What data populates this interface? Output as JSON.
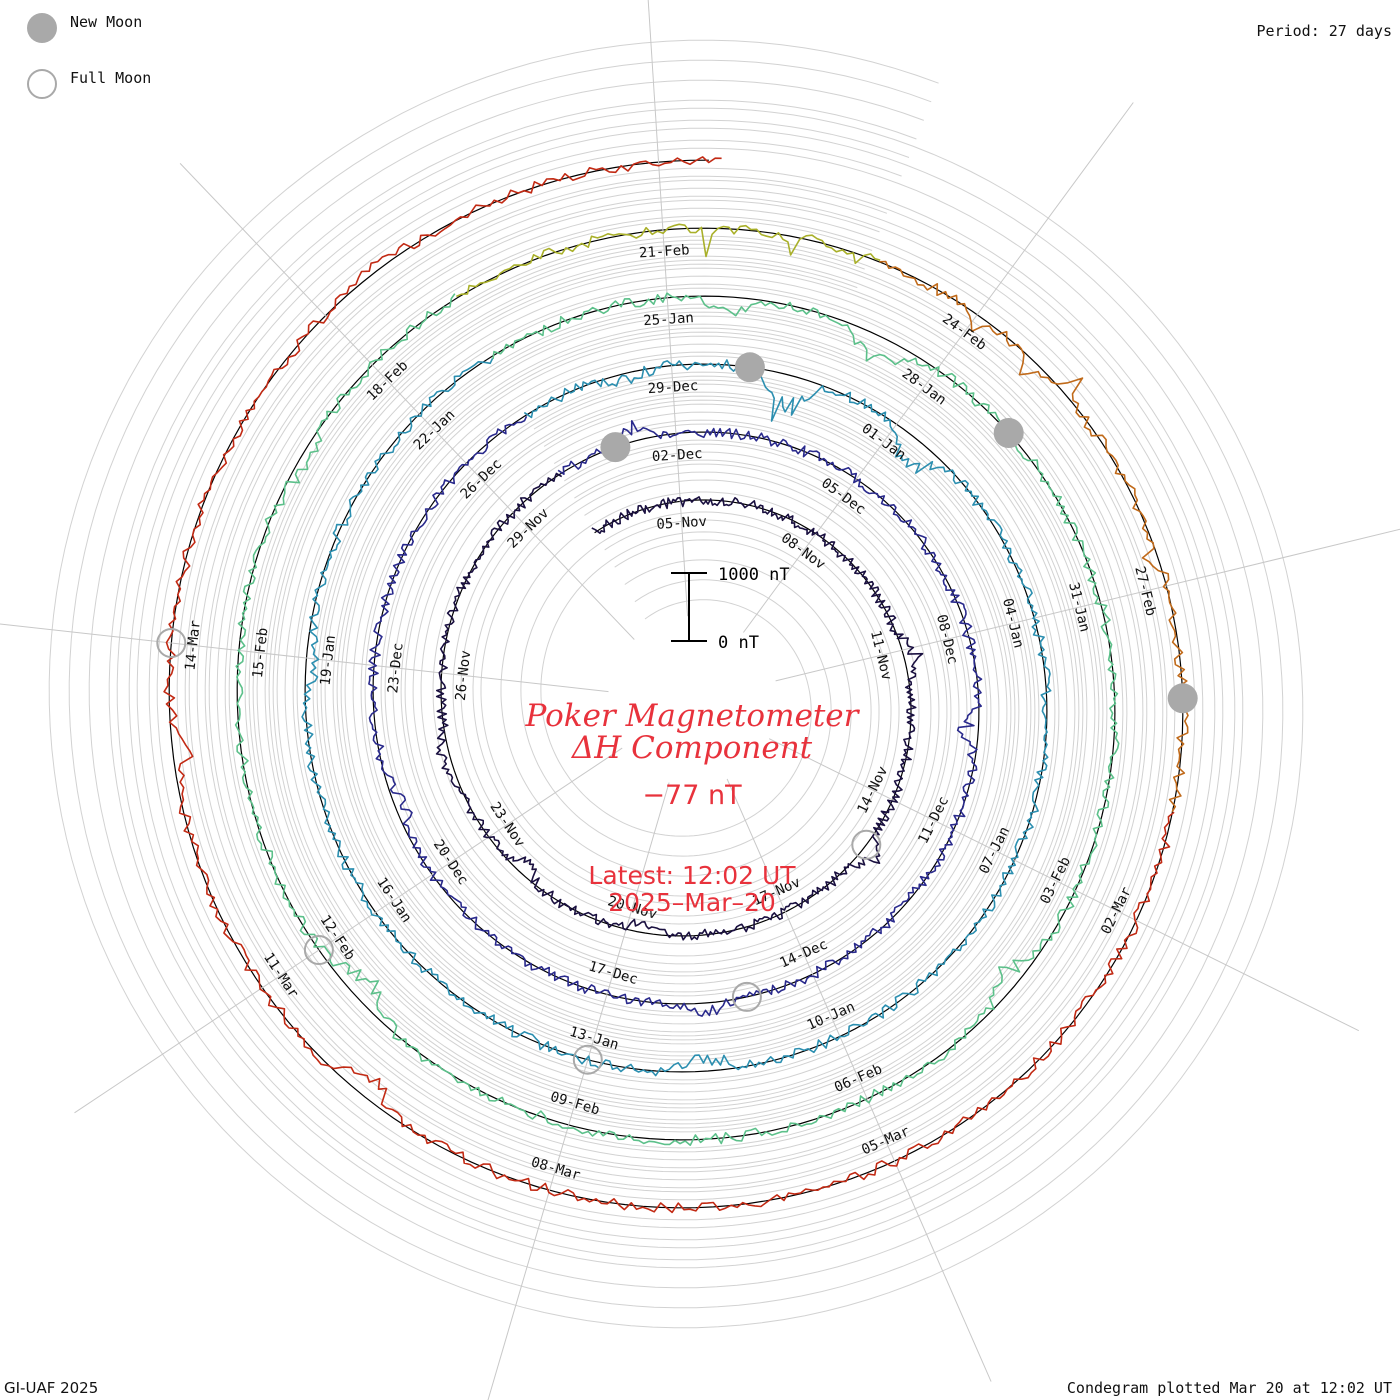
{
  "legend": {
    "new_moon_label": "New Moon",
    "full_moon_label": "Full Moon",
    "new_moon_color": "#a9a9a9",
    "full_moon_color": "#a9a9a9"
  },
  "period_label": "Period: 27 days",
  "credit": "GI-UAF 2025",
  "plot_note": "Condegram plotted Mar 20 at 12:02 UT",
  "center": {
    "title_line1": "Poker Magnetometer",
    "title_line2": "ΔH Component",
    "value": "−77 nT",
    "latest": "Latest: 12:02 UT",
    "date": "2025–Mar–20",
    "color": "#e8323c"
  },
  "scale_bar": {
    "top_label": "1000 nT",
    "bottom_label": "0 nT",
    "value_nT": 1000
  },
  "chart_data": {
    "type": "line",
    "layout_kind": "spiral condegram",
    "period_days": 27,
    "start": "2024-11-03",
    "end": "2025-03-20T12:02",
    "units": "nT",
    "cycles": [
      {
        "color": "#1a1040",
        "start": "2024-11-03",
        "mean_nT": 0,
        "spikes": [
          [
            0.3,
            -220
          ],
          [
            0.45,
            -240
          ],
          [
            0.62,
            120
          ],
          [
            0.71,
            160
          ],
          [
            0.8,
            -130
          ]
        ]
      },
      {
        "color": "#2a2a8c",
        "start": "2024-11-30",
        "mean_nT": 0,
        "spikes": [
          [
            0.05,
            -180
          ],
          [
            0.35,
            220
          ],
          [
            0.58,
            -160
          ],
          [
            0.78,
            140
          ]
        ]
      },
      {
        "color": "#2c8fb0",
        "start": "2024-12-27",
        "mean_nT": 0,
        "spikes": [
          [
            0.05,
            90
          ],
          [
            0.13,
            520
          ],
          [
            0.2,
            380
          ],
          [
            0.58,
            200
          ],
          [
            0.85,
            120
          ]
        ]
      },
      {
        "color": "#5cc08a",
        "start": "2025-01-23",
        "mean_nT": 0,
        "spikes": [
          [
            0.1,
            180
          ],
          [
            0.16,
            320
          ],
          [
            0.45,
            220
          ],
          [
            0.72,
            260
          ],
          [
            0.92,
            140
          ]
        ]
      },
      {
        "color": "#a9b02a",
        "start": "2025-02-19",
        "mean_nT": 0,
        "spikes": [
          [
            0.08,
            100
          ],
          [
            0.6,
            280
          ],
          [
            0.8,
            200
          ],
          [
            0.95,
            160
          ]
        ]
      },
      {
        "color": "#c06a1a",
        "start": "2025-02-23",
        "mean_nT": 0,
        "spikes": [
          [
            0.18,
            220
          ],
          [
            0.28,
            300
          ],
          [
            0.34,
            -260
          ],
          [
            0.62,
            180
          ]
        ]
      },
      {
        "color": "#c22a14",
        "start": "2025-03-01",
        "mean_nT": 0,
        "spikes": [
          [
            0.45,
            250
          ],
          [
            0.62,
            200
          ],
          [
            0.85,
            -120
          ]
        ]
      }
    ],
    "date_labels": [
      "05-Nov",
      "08-Nov",
      "11-Nov",
      "14-Nov",
      "17-Nov",
      "20-Nov",
      "23-Nov",
      "26-Nov",
      "29-Nov",
      "02-Dec",
      "05-Dec",
      "08-Dec",
      "11-Dec",
      "14-Dec",
      "17-Dec",
      "20-Dec",
      "23-Dec",
      "26-Dec",
      "29-Dec",
      "01-Jan",
      "04-Jan",
      "07-Jan",
      "10-Jan",
      "13-Jan",
      "16-Jan",
      "19-Jan",
      "22-Jan",
      "25-Jan",
      "28-Jan",
      "31-Jan",
      "03-Feb",
      "06-Feb",
      "09-Feb",
      "12-Feb",
      "15-Feb",
      "18-Feb",
      "21-Feb",
      "24-Feb",
      "27-Feb",
      "02-Mar",
      "05-Mar",
      "08-Mar",
      "11-Mar",
      "14-Mar"
    ],
    "new_moons": [
      "2024-12-01",
      "2024-12-30",
      "2025-01-29",
      "2025-02-28"
    ],
    "full_moons": [
      "2024-11-15",
      "2024-12-15",
      "2025-01-13",
      "2025-02-12",
      "2025-03-14"
    ],
    "grid": true
  }
}
